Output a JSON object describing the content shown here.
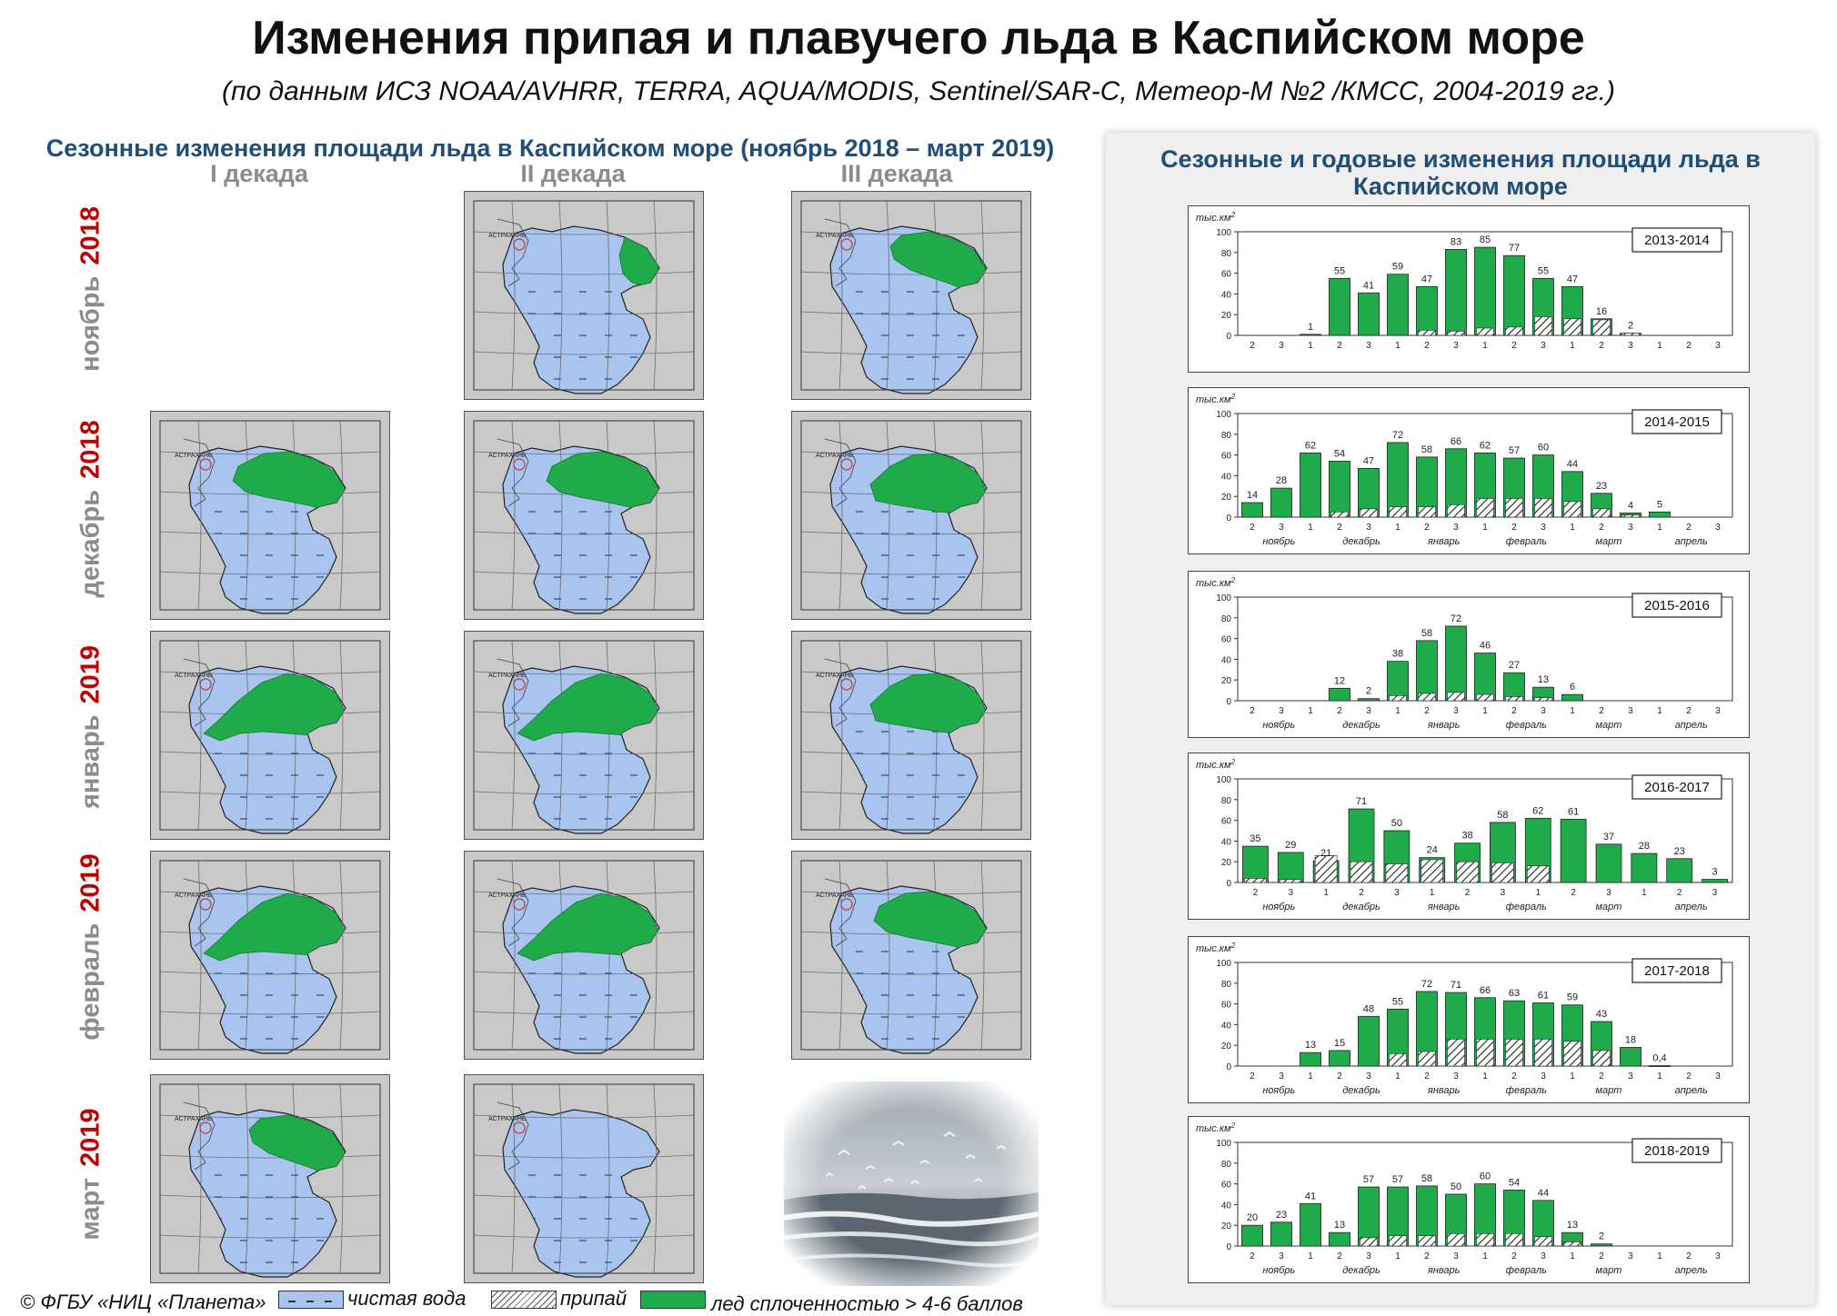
{
  "header": {
    "title": "Изменения припая и плавучего льда в Каспийском  море",
    "subtitle": "(по данным ИСЗ NOAA/AVHRR, TERRA, AQUA/MODIS, Sentinel/SAR-C, Метеор-М №2 /КМСС, 2004-2019 гг.)"
  },
  "left": {
    "heading": "Сезонные изменения площади льда в Каспийском море (ноябрь 2018 – март 2019)",
    "columns": [
      "I декада",
      "II  декада",
      "III  декада"
    ],
    "rows": [
      {
        "month": "ноябрь",
        "year": "2018"
      },
      {
        "month": "декабрь",
        "year": "2018"
      },
      {
        "month": "январь",
        "year": "2019"
      },
      {
        "month": "февраль",
        "year": "2019"
      },
      {
        "month": "март",
        "year": "2019"
      }
    ],
    "map_city_label": "АСТРАХАНЬ"
  },
  "legend": {
    "copyright": "© ФГБУ «НИЦ «Планета»",
    "water": "чистая вода",
    "fast_ice": "припай",
    "drift_ice": "лед сплоченностью > 4-6 баллов"
  },
  "colors": {
    "water": "#a9c4ee",
    "ice": "#1fab49",
    "land": "#c9c9c9",
    "title_blue": "#1f4e79",
    "year_red": "#c00000"
  },
  "right": {
    "heading": "Сезонные  и годовые изменения площади льда в Каспийском море"
  },
  "chart_data": [
    {
      "type": "bar",
      "season": "2013-2014",
      "ylabel": "тыс.км2",
      "ylim": [
        0,
        100
      ],
      "yticks": [
        "0",
        "20",
        "40",
        "60",
        "80",
        "100"
      ],
      "decades": [
        "2",
        "3",
        "1",
        "2",
        "3",
        "1",
        "2",
        "3",
        "1",
        "2",
        "3",
        "1",
        "2",
        "3",
        "1",
        "2",
        "3"
      ],
      "months": [],
      "series": [
        {
          "name": "total",
          "values": [
            0,
            0,
            1,
            55,
            41,
            59,
            47,
            83,
            85,
            77,
            55,
            47,
            16,
            2,
            0,
            0,
            0
          ]
        },
        {
          "name": "fast_ice",
          "values": [
            0,
            0,
            0,
            0,
            0,
            0,
            5,
            4,
            7,
            8,
            18,
            16,
            15,
            2,
            0,
            0,
            0
          ]
        }
      ],
      "labels": [
        "",
        "",
        "1",
        "55",
        "41",
        "59",
        "47",
        "83",
        "85",
        "77",
        "55",
        "47",
        "16",
        "2",
        "",
        "",
        ""
      ]
    },
    {
      "type": "bar",
      "season": "2014-2015",
      "ylabel": "тыс.км2",
      "ylim": [
        0,
        100
      ],
      "yticks": [
        "0",
        "20",
        "40",
        "60",
        "80",
        "100"
      ],
      "decades": [
        "2",
        "3",
        "1",
        "2",
        "3",
        "1",
        "2",
        "3",
        "1",
        "2",
        "3",
        "1",
        "2",
        "3",
        "1",
        "2",
        "3"
      ],
      "months": [
        "ноябрь",
        "декабрь",
        "январь",
        "февраль",
        "март",
        "апрель"
      ],
      "series": [
        {
          "name": "total",
          "values": [
            14,
            28,
            62,
            54,
            47,
            72,
            58,
            66,
            62,
            57,
            60,
            44,
            23,
            4,
            5,
            0,
            0
          ]
        },
        {
          "name": "fast_ice",
          "values": [
            0,
            0,
            0,
            5,
            8,
            10,
            10,
            12,
            18,
            18,
            18,
            15,
            8,
            2,
            0,
            0,
            0
          ]
        }
      ],
      "labels": [
        "14",
        "28",
        "62",
        "54",
        "47",
        "72",
        "58",
        "66",
        "62",
        "57",
        "60",
        "44",
        "23",
        "4",
        "5",
        "",
        ""
      ]
    },
    {
      "type": "bar",
      "season": "2015-2016",
      "ylabel": "тыс.км2",
      "ylim": [
        0,
        100
      ],
      "yticks": [
        "0",
        "20",
        "40",
        "60",
        "80",
        "100"
      ],
      "decades": [
        "2",
        "3",
        "1",
        "2",
        "3",
        "1",
        "2",
        "3",
        "1",
        "2",
        "3",
        "1",
        "2",
        "3",
        "1",
        "2",
        "3"
      ],
      "months": [
        "ноябрь",
        "декабрь",
        "январь",
        "февраль",
        "март",
        "апрель"
      ],
      "series": [
        {
          "name": "total",
          "values": [
            0,
            0,
            0,
            12,
            2,
            38,
            58,
            72,
            46,
            27,
            13,
            6,
            0,
            0,
            0,
            0,
            0
          ]
        },
        {
          "name": "fast_ice",
          "values": [
            0,
            0,
            0,
            0,
            0,
            5,
            7,
            8,
            6,
            4,
            3,
            0,
            0,
            0,
            0,
            0,
            0
          ]
        }
      ],
      "labels": [
        "",
        "",
        "",
        "12",
        "2",
        "38",
        "58",
        "72",
        "46",
        "27",
        "13",
        "6",
        "",
        "",
        "",
        "",
        ""
      ]
    },
    {
      "type": "bar",
      "season": "2016-2017",
      "ylabel": "тыс.км2",
      "ylim": [
        0,
        100
      ],
      "yticks": [
        "0",
        "20",
        "40",
        "60",
        "80",
        "100"
      ],
      "decades": [
        "2",
        "3",
        "1",
        "2",
        "3",
        "1",
        "2",
        "3",
        "1",
        "2",
        "3",
        "1",
        "2",
        "3"
      ],
      "months": [
        "ноябрь",
        "декабрь",
        "январь",
        "февраль",
        "март",
        "апрель"
      ],
      "series": [
        {
          "name": "total",
          "values": [
            35,
            29,
            21,
            71,
            50,
            24,
            38,
            58,
            62,
            61,
            37,
            28,
            23,
            3
          ]
        },
        {
          "name": "fast_ice",
          "values": [
            4,
            3,
            26,
            20,
            18,
            22,
            20,
            19,
            16,
            0,
            0,
            0,
            0,
            0
          ]
        }
      ],
      "labels": [
        "35",
        "29",
        "21",
        "71",
        "50",
        "24",
        "38",
        "58",
        "62",
        "61",
        "37",
        "28",
        "23",
        "3"
      ]
    },
    {
      "type": "bar",
      "season": "2017-2018",
      "ylabel": "тыс.км2",
      "ylim": [
        0,
        100
      ],
      "yticks": [
        "0",
        "20",
        "40",
        "60",
        "80",
        "100"
      ],
      "decades": [
        "2",
        "3",
        "1",
        "2",
        "3",
        "1",
        "2",
        "3",
        "1",
        "2",
        "3",
        "1",
        "2",
        "3",
        "1",
        "2",
        "3"
      ],
      "months": [
        "ноябрь",
        "декабрь",
        "январь",
        "февраль",
        "март",
        "апрель"
      ],
      "series": [
        {
          "name": "total",
          "values": [
            0,
            0,
            13,
            15,
            48,
            55,
            72,
            71,
            66,
            63,
            61,
            59,
            43,
            18,
            0.4,
            0,
            0
          ]
        },
        {
          "name": "fast_ice",
          "values": [
            0,
            0,
            0,
            0,
            0,
            12,
            14,
            26,
            26,
            26,
            26,
            24,
            15,
            0,
            0,
            0,
            0
          ]
        }
      ],
      "labels": [
        "",
        "",
        "13",
        "15",
        "48",
        "55",
        "72",
        "71",
        "66",
        "63",
        "61",
        "59",
        "43",
        "18",
        "0,4",
        "",
        ""
      ]
    },
    {
      "type": "bar",
      "season": "2018-2019",
      "ylabel": "тыс.км2",
      "ylim": [
        0,
        100
      ],
      "yticks": [
        "0",
        "20",
        "40",
        "60",
        "80",
        "100"
      ],
      "decades": [
        "2",
        "3",
        "1",
        "2",
        "3",
        "1",
        "2",
        "3",
        "1",
        "2",
        "3",
        "1",
        "2",
        "3",
        "1",
        "2",
        "3"
      ],
      "months": [
        "ноябрь",
        "декабрь",
        "январь",
        "февраль",
        "март",
        "апрель"
      ],
      "series": [
        {
          "name": "total",
          "values": [
            20,
            23,
            41,
            13,
            57,
            57,
            58,
            50,
            60,
            54,
            44,
            13,
            2,
            0,
            0,
            0,
            0
          ]
        },
        {
          "name": "fast_ice",
          "values": [
            0,
            0,
            0,
            0,
            8,
            10,
            10,
            12,
            12,
            12,
            9,
            4,
            0,
            0,
            0,
            0,
            0
          ]
        }
      ],
      "labels": [
        "20",
        "23",
        "41",
        "13",
        "57",
        "57",
        "58",
        "50",
        "60",
        "54",
        "44",
        "13",
        "2",
        "",
        "",
        "",
        ""
      ]
    }
  ]
}
